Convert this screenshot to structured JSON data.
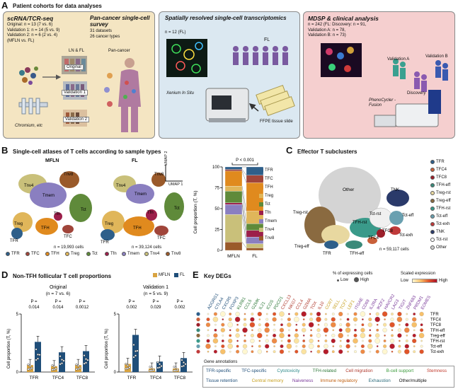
{
  "panelA": {
    "letter": "A",
    "title": "Patient cohorts for data analyses",
    "box1": {
      "title": "scRNA/TCR-seq",
      "lines": [
        "Original: n = 13 (7 vs. 6)",
        "Validation 1: n = 14 (5 vs. 9)",
        "Validation 2: n = 6 (2 vs. 4)",
        "(MFLN vs. FL)"
      ],
      "pan_title": "Pan-cancer single-cell survey",
      "pan_lines": [
        "31 datasets",
        "26 cancer types"
      ],
      "col_labels": [
        "LN & FL",
        "Pan-cancer"
      ],
      "chips": [
        "Original",
        "Validation 1",
        "Validation 2"
      ],
      "chromium": "Chromium, etc"
    },
    "box2": {
      "title": "Spatially resolved single-cell transcriptomics",
      "n": "n = 12 (FL)",
      "fl": "FL",
      "xenium": "Xenium In Situ",
      "ffpe": "FFPE tissue slide"
    },
    "box3": {
      "title": "MDSP & clinical analysis",
      "lines": [
        "n = 242 (FL: Discovery: n = 91,",
        "Validation A: n = 78,",
        "Validation B: n = 73)"
      ],
      "labels": [
        "Validation A",
        "Validation B",
        "Discovery"
      ],
      "device": "PhenoCycler -Fusion"
    }
  },
  "panelB": {
    "letter": "B",
    "title": "Single-cell atlases of T cells according to sample types",
    "umaps": [
      {
        "name": "MFLN",
        "cells": "n = 19,993 cells",
        "labels": [
          "Tnv4",
          "Tnv8",
          "Tmem",
          "Tct",
          "Tfn",
          "Treg",
          "TFH",
          "TFC",
          "TFR"
        ]
      },
      {
        "name": "FL",
        "cells": "n = 39,124 cells",
        "labels": [
          "Tnv4",
          "Tnv8",
          "Tmem",
          "Tct",
          "Tfn",
          "Treg",
          "TFH",
          "TFC",
          "TFR"
        ]
      }
    ],
    "umap_axis": [
      "UMAP 2",
      "UMAP 1"
    ],
    "legend": [
      {
        "label": "TFR",
        "color": "#2e5f8a"
      },
      {
        "label": "TFC",
        "color": "#a0453a"
      },
      {
        "label": "TFH",
        "color": "#e08a1e"
      },
      {
        "label": "Treg",
        "color": "#e0b65a"
      },
      {
        "label": "Tct",
        "color": "#5f8a3a"
      },
      {
        "label": "Tfn",
        "color": "#9c1f4a"
      },
      {
        "label": "Tmem",
        "color": "#8a7fc0"
      },
      {
        "label": "Tnv4",
        "color": "#c9c07a"
      },
      {
        "label": "Tnv8",
        "color": "#9a5a2a"
      }
    ]
  },
  "chart_data": [
    {
      "type": "bar",
      "stacked": true,
      "categories": [
        "MFLN",
        "FL"
      ],
      "ylabel": "Cell proportion (T, %)",
      "ylim": [
        0,
        100
      ],
      "yticks": [
        0,
        25,
        50,
        75,
        100
      ],
      "annotation": "P < 0.001",
      "series": [
        {
          "name": "Tnv8",
          "color": "#9a5a2a",
          "values": [
            10,
            3
          ]
        },
        {
          "name": "Tnv4",
          "color": "#c9c07a",
          "values": [
            33,
            5
          ]
        },
        {
          "name": "Tmem",
          "color": "#8a7fc0",
          "values": [
            12,
            8
          ]
        },
        {
          "name": "Tfn",
          "color": "#9c1f4a",
          "values": [
            2,
            8
          ]
        },
        {
          "name": "Tct",
          "color": "#5f8a3a",
          "values": [
            14,
            8
          ]
        },
        {
          "name": "Treg",
          "color": "#e0b65a",
          "values": [
            6,
            15
          ]
        },
        {
          "name": "TFH",
          "color": "#e08a1e",
          "values": [
            18,
            34
          ]
        },
        {
          "name": "TFC",
          "color": "#a0453a",
          "values": [
            2,
            9
          ]
        },
        {
          "name": "TFR",
          "color": "#2e5f8a",
          "values": [
            3,
            10
          ]
        }
      ]
    },
    {
      "type": "bar",
      "title": "Original",
      "subtitle": "(n = 7 vs. 6)",
      "categories": [
        "TFR",
        "TFC4",
        "TFC8"
      ],
      "series": [
        {
          "name": "MFLN",
          "values": [
            0.6,
            0.5,
            0.6
          ]
        },
        {
          "name": "FL",
          "values": [
            2.6,
            1.7,
            1.8
          ]
        }
      ],
      "pvalues": [
        "P = 0.014",
        "P = 0.014",
        "P = 0.0012"
      ],
      "ylabel": "Cell proportion (T, %)",
      "ylim": [
        0,
        5
      ],
      "yticks": [
        0,
        5
      ]
    },
    {
      "type": "bar",
      "title": "Validation 1",
      "subtitle": "(n = 5 vs. 9)",
      "categories": [
        "TFR",
        "TFC4",
        "TFC8"
      ],
      "series": [
        {
          "name": "MFLN",
          "values": [
            0.7,
            0.3,
            0.3
          ]
        },
        {
          "name": "FL",
          "values": [
            3.2,
            0.9,
            1.2
          ]
        }
      ],
      "pvalues": [
        "P = 0.002",
        "P = 0.029",
        "P = 0.002"
      ],
      "ylabel": "Cell proportion (T, %)",
      "ylim": [
        0,
        5
      ],
      "yticks": [
        0,
        5
      ]
    }
  ],
  "panelC": {
    "letter": "C",
    "title": "Effector T subclusters",
    "cells": "n = 59,117 cells",
    "labels": [
      "Other",
      "TNK",
      "Treg-rst",
      "Tct-rst",
      "Tct-eff",
      "TFH-rst",
      "Tct-exh",
      "TFC8",
      "TFC4",
      "Treg-eff",
      "TFR",
      "TFH-eff"
    ],
    "legend": [
      {
        "label": "TFR",
        "color": "#2e5f8a"
      },
      {
        "label": "TFC4",
        "color": "#c9603a"
      },
      {
        "label": "TFC8",
        "color": "#9c1f2a"
      },
      {
        "label": "TFH-eff",
        "color": "#3a8a7a"
      },
      {
        "label": "Treg-rst",
        "color": "#e8d8a0"
      },
      {
        "label": "Treg-eff",
        "color": "#8a6a40"
      },
      {
        "label": "TFH-rst",
        "color": "#3a9a8a"
      },
      {
        "label": "Tct-eff",
        "color": "#6aa0b0"
      },
      {
        "label": "Tct-exh",
        "color": "#c03a3a"
      },
      {
        "label": "TNK",
        "color": "#2a3a6a"
      },
      {
        "label": "Tct-rst",
        "color": "#ffffff"
      },
      {
        "label": "Other",
        "color": "#cfcfcf"
      }
    ]
  },
  "panelD": {
    "letter": "D",
    "title": "Non-TFH follicular T cell proportions",
    "legend": [
      {
        "label": "MFLN",
        "color": "#d9a441"
      },
      {
        "label": "FL",
        "color": "#1f4e79"
      }
    ]
  },
  "panelE": {
    "letter": "E",
    "title": "Key DEGs",
    "size_legend_title": "% of expressing cells",
    "size_legend": [
      "Low",
      "High"
    ],
    "color_legend_title": "Scaled expression",
    "color_legend": [
      "Low",
      "High"
    ],
    "genes": [
      "ADGRG1",
      "CTLA4",
      "CXCR5",
      "FOXP3",
      "KLRB1",
      "CCL5",
      "GZMK",
      "IL21",
      "ICOS",
      "PDCD1",
      "CXCL13",
      "NKG7",
      "CCL4",
      "GZMA",
      "TOX",
      "IL10",
      "CCR7",
      "SELL",
      "TCF7",
      "LEF1",
      "ITGAE",
      "CD69",
      "IL2RA",
      "IKZF2",
      "HAVCR2",
      "LAG3",
      "TIGIT",
      "ZNF683",
      "PRDM1",
      "EOMES"
    ],
    "rows": [
      "TFR",
      "TFC4",
      "TFC8",
      "TFH-eff",
      "Treg-eff",
      "TFH-rst",
      "Tct-eff",
      "Tct-exh"
    ],
    "row_colors": [
      "#2e5f8a",
      "#c9603a",
      "#9c1f2a",
      "#3a8a7a",
      "#8a6a40",
      "#3a9a8a",
      "#6aa0b0",
      "#c03a3a"
    ],
    "gene_annotation_title": "Gene annotations",
    "annotations": [
      {
        "label": "TFR-specific",
        "color": "#1f4e79"
      },
      {
        "label": "TFC-specific",
        "color": "#1f4e79"
      },
      {
        "label": "Cytotoxicity",
        "color": "#2f8a8a"
      },
      {
        "label": "TFH-related",
        "color": "#2f7a3a"
      },
      {
        "label": "Cell migration",
        "color": "#b03a2e"
      },
      {
        "label": "B-cell support",
        "color": "#3a9a3a"
      },
      {
        "label": "Stemness",
        "color": "#c0392b"
      },
      {
        "label": "Tissue retention",
        "color": "#1f4e79"
      },
      {
        "label": "Central memory",
        "color": "#c7a020"
      },
      {
        "label": "Naiveness",
        "color": "#7a3a9a"
      },
      {
        "label": "Immune regulatory",
        "color": "#c06010"
      },
      {
        "label": "Exhaustion",
        "color": "#2a6a7a"
      },
      {
        "label": "Other/multiple",
        "color": "#111111"
      }
    ]
  }
}
